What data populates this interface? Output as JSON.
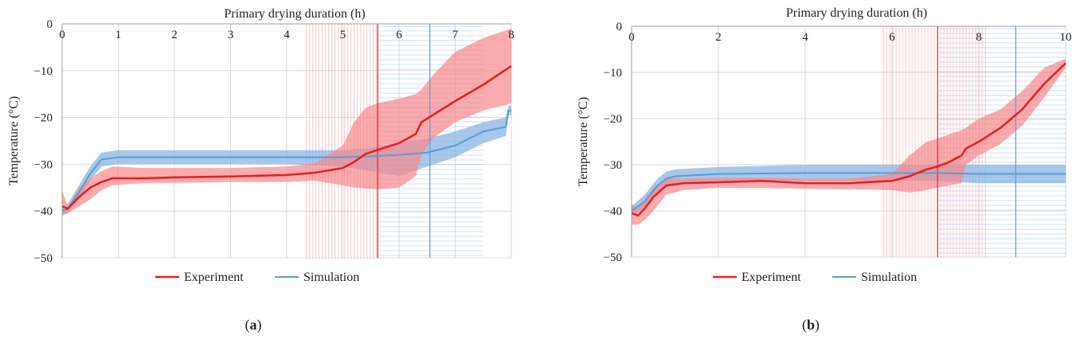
{
  "chart_data": [
    {
      "type": "line",
      "panel_label": "(a)",
      "panel_letter": "a",
      "title": "",
      "xlabel": "Primary drying duration (h)",
      "ylabel": "Temperature (°C)",
      "xlim": [
        0,
        8
      ],
      "ylim": [
        -50,
        0
      ],
      "xticks": [
        0,
        1,
        2,
        3,
        4,
        5,
        6,
        7,
        8
      ],
      "yticks": [
        0,
        -10,
        -20,
        -30,
        -40,
        -50
      ],
      "ytick_labels": [
        "0",
        "−10",
        "−20",
        "−30",
        "−40",
        "−50"
      ],
      "grid": true,
      "legend": [
        "Experiment",
        "Simulation"
      ],
      "legend_position": "bottom-center",
      "colors": {
        "experiment": "#e81e1e",
        "experiment_band": "#f7878a",
        "simulation": "#5b9bd5",
        "simulation_band": "#8ab6e3"
      },
      "vertical_lines": [
        {
          "series": "Experiment",
          "x": 5.62
        },
        {
          "series": "Simulation",
          "x": 6.55
        }
      ],
      "endpoint_bands": [
        {
          "series": "Experiment",
          "x_range": [
            4.35,
            5.62
          ]
        },
        {
          "series": "Simulation",
          "x_range": [
            5.62,
            7.5
          ]
        }
      ],
      "series": [
        {
          "name": "Experiment",
          "x": [
            0,
            0.1,
            0.3,
            0.5,
            0.7,
            0.9,
            1.5,
            2,
            3,
            4,
            4.5,
            5,
            5.2,
            5.4,
            5.6,
            6.0,
            6.3,
            6.4,
            6.6,
            7,
            7.5,
            8
          ],
          "y": [
            -39,
            -39.5,
            -37,
            -35,
            -33.8,
            -33,
            -33,
            -32.8,
            -32.6,
            -32.3,
            -31.8,
            -30.8,
            -29.5,
            -27.8,
            -27,
            -25.5,
            -23.5,
            -21,
            -19.5,
            -16.5,
            -13,
            -9
          ],
          "upper": [
            -35.5,
            -39,
            -35,
            -33,
            -31.5,
            -30.5,
            -30.8,
            -30.8,
            -30.8,
            -30.5,
            -29.8,
            -26,
            -21,
            -18,
            -17,
            -16,
            -15,
            -14,
            -11,
            -6,
            -3,
            -1
          ],
          "lower": [
            -40.5,
            -40.5,
            -39,
            -37.5,
            -35.5,
            -34.5,
            -34,
            -34,
            -33.8,
            -33.8,
            -33.5,
            -34.5,
            -35,
            -35.2,
            -35.3,
            -35,
            -32.5,
            -28,
            -24.5,
            -21,
            -18.5,
            -17
          ]
        },
        {
          "name": "Simulation",
          "x": [
            0,
            0.1,
            0.3,
            0.5,
            0.7,
            1.0,
            2,
            3,
            4,
            5,
            5.5,
            6,
            6.5,
            7,
            7.5,
            7.9,
            7.95,
            8
          ],
          "y": [
            -40,
            -39.5,
            -36,
            -32,
            -29,
            -28.5,
            -28.5,
            -28.5,
            -28.5,
            -28.5,
            -28.3,
            -28,
            -27.5,
            -26,
            -23,
            -22,
            -18.5,
            -18.5
          ],
          "upper": [
            -39,
            -38.5,
            -34.5,
            -30.5,
            -27.5,
            -27,
            -27,
            -27,
            -27,
            -27,
            -26.5,
            -25.5,
            -24.5,
            -23,
            -21,
            -20,
            -17.5,
            -17.5
          ],
          "lower": [
            -41,
            -40.5,
            -37.5,
            -33.5,
            -30.5,
            -30,
            -30,
            -30,
            -30,
            -30.5,
            -31.5,
            -32.5,
            -30.5,
            -28.5,
            -25.5,
            -24,
            -19.5,
            -19.5
          ]
        }
      ]
    },
    {
      "type": "line",
      "panel_label": "(b)",
      "panel_letter": "b",
      "title": "",
      "xlabel": "Primary drying duration (h)",
      "ylabel": "Temperature (°C)",
      "xlim": [
        0,
        10
      ],
      "ylim": [
        -50,
        0
      ],
      "xticks": [
        0,
        2,
        4,
        6,
        8,
        10
      ],
      "yticks": [
        0,
        -10,
        -20,
        -30,
        -40,
        -50
      ],
      "ytick_labels": [
        "0",
        "−10",
        "−20",
        "−30",
        "−40",
        "−50"
      ],
      "grid": true,
      "legend": [
        "Experiment",
        "Simulation"
      ],
      "legend_position": "bottom-center",
      "colors": {
        "experiment": "#e81e1e",
        "experiment_band": "#f7878a",
        "simulation": "#5b9bd5",
        "simulation_band": "#8ab6e3"
      },
      "vertical_lines": [
        {
          "series": "Experiment",
          "x": 7.05
        },
        {
          "series": "Simulation",
          "x": 8.85
        }
      ],
      "endpoint_bands": [
        {
          "series": "Experiment",
          "x_range": [
            5.8,
            8.2
          ]
        },
        {
          "series": "Simulation",
          "x_range": [
            7.05,
            10
          ]
        }
      ],
      "series": [
        {
          "name": "Experiment",
          "x": [
            0,
            0.15,
            0.3,
            0.5,
            0.8,
            1.2,
            2,
            3,
            4,
            5,
            6,
            6.4,
            6.8,
            7.0,
            7.3,
            7.6,
            7.7,
            8,
            8.5,
            9,
            9.5,
            10
          ],
          "y": [
            -40.5,
            -41,
            -39.5,
            -37,
            -34.5,
            -34,
            -33.8,
            -33.5,
            -34,
            -34,
            -33.5,
            -32.5,
            -31,
            -30.5,
            -29.5,
            -28,
            -26.5,
            -25,
            -22,
            -18,
            -12.5,
            -8
          ],
          "upper": [
            -38.5,
            -39.5,
            -37.5,
            -35,
            -33,
            -33,
            -32.8,
            -32.8,
            -33,
            -33,
            -32,
            -28,
            -25,
            -24.5,
            -23.5,
            -22.5,
            -22,
            -20,
            -18,
            -14,
            -9,
            -7
          ],
          "lower": [
            -43,
            -43,
            -42,
            -40,
            -36.5,
            -35.5,
            -35,
            -35,
            -35.2,
            -35.3,
            -35.5,
            -36,
            -35.5,
            -35,
            -34.5,
            -34,
            -30,
            -28,
            -25.5,
            -21.5,
            -15.5,
            -9
          ]
        },
        {
          "name": "Simulation",
          "x": [
            0,
            0.3,
            0.6,
            0.8,
            1,
            2,
            4,
            6,
            7,
            8,
            9,
            10
          ],
          "y": [
            -40,
            -38,
            -34.5,
            -33,
            -32.5,
            -32,
            -31.8,
            -31.8,
            -31.8,
            -32,
            -32,
            -32
          ],
          "upper": [
            -39,
            -36.5,
            -33,
            -31.5,
            -31,
            -30.5,
            -30,
            -30,
            -30,
            -30,
            -30,
            -30
          ],
          "lower": [
            -41,
            -39.5,
            -36,
            -34.5,
            -34,
            -33.5,
            -33.5,
            -33.5,
            -33.5,
            -34,
            -34,
            -34
          ]
        }
      ]
    }
  ]
}
